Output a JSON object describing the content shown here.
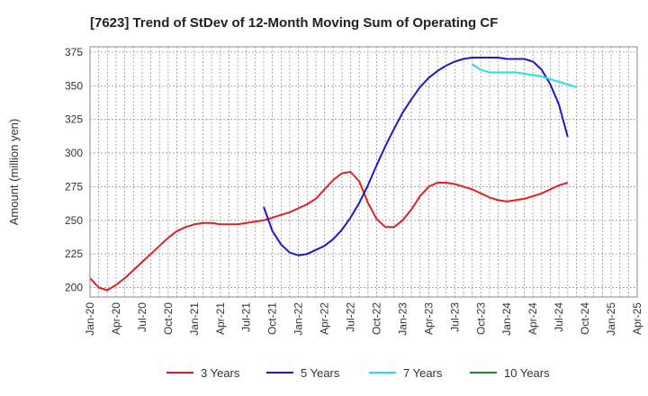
{
  "chart_data": {
    "type": "line",
    "title": "[7623]  Trend of StDev of 12-Month Moving Sum of Operating CF",
    "ylabel": "Amount (million yen)",
    "xlabel": "",
    "ylim": [
      193,
      379
    ],
    "yticks": [
      200,
      225,
      250,
      275,
      300,
      325,
      350,
      375
    ],
    "xticks": [
      "Jan-20",
      "Apr-20",
      "Jul-20",
      "Oct-20",
      "Jan-21",
      "Apr-21",
      "Jul-21",
      "Oct-21",
      "Jan-22",
      "Apr-22",
      "Jul-22",
      "Oct-22",
      "Jan-23",
      "Apr-23",
      "Jul-23",
      "Oct-23",
      "Jan-24",
      "Apr-24",
      "Jul-24",
      "Oct-24",
      "Jan-25",
      "Apr-25"
    ],
    "grid": true,
    "legend_position": "bottom",
    "series": [
      {
        "name": "3 Years",
        "color": "#e02020",
        "start": "Jan-20",
        "values": [
          207,
          200,
          198,
          202,
          207,
          213,
          219,
          225,
          231,
          237,
          242,
          245,
          247,
          248,
          248,
          247,
          247,
          247,
          248,
          249,
          250,
          252,
          254,
          256,
          259,
          262,
          266,
          273,
          280,
          285,
          286,
          279,
          263,
          251,
          245,
          245,
          250,
          258,
          268,
          275,
          278,
          278,
          277,
          275,
          273,
          270,
          267,
          265,
          264,
          265,
          266,
          268,
          270,
          273,
          276,
          278
        ]
      },
      {
        "name": "5 Years",
        "color": "#1a1acc",
        "start": "Sep-21",
        "values": [
          260,
          242,
          232,
          226,
          224,
          225,
          228,
          231,
          236,
          243,
          252,
          263,
          276,
          291,
          305,
          318,
          330,
          340,
          349,
          356,
          361,
          365,
          368,
          370,
          371,
          371,
          371,
          371,
          370,
          370,
          370,
          368,
          362,
          351,
          336,
          312
        ]
      },
      {
        "name": "7 Years",
        "color": "#22e0e8",
        "start": "Sep-23",
        "values": [
          366,
          362,
          360,
          360,
          360,
          360,
          359,
          358,
          357,
          355,
          353,
          351,
          349
        ]
      },
      {
        "name": "10 Years",
        "color": "#228b22",
        "start": "Oct-24",
        "values": []
      }
    ]
  }
}
